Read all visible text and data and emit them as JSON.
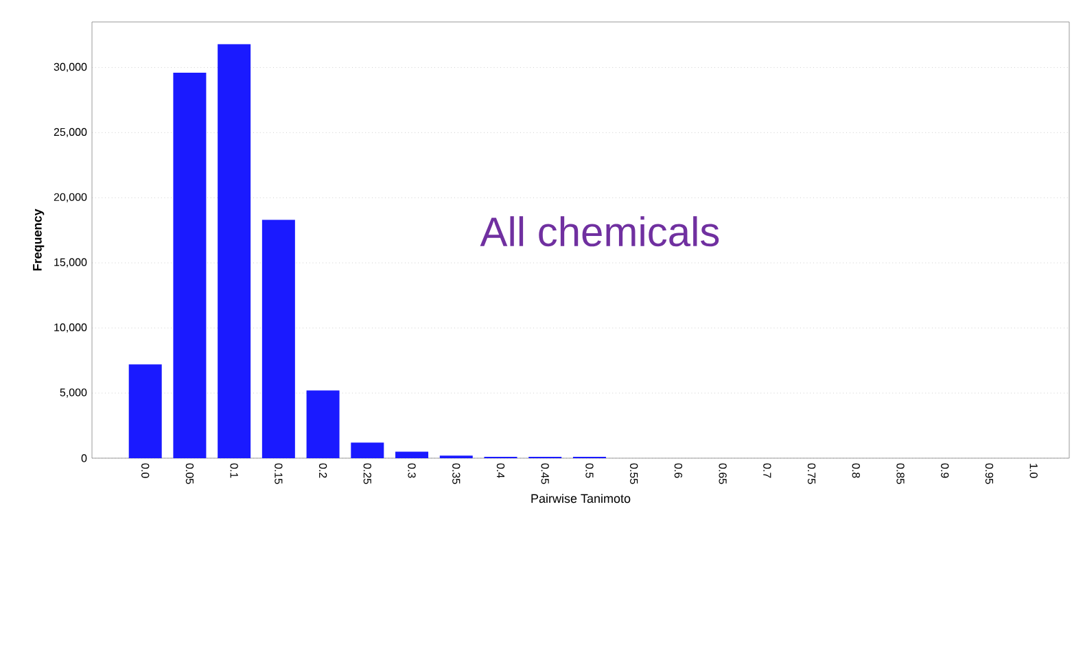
{
  "chart_data": {
    "type": "bar",
    "categories": [
      "0.0",
      "0.05",
      "0.1",
      "0.15",
      "0.2",
      "0.25",
      "0.3",
      "0.35",
      "0.4",
      "0.45",
      "0.5",
      "0.55",
      "0.6",
      "0.65",
      "0.7",
      "0.75",
      "0.8",
      "0.85",
      "0.9",
      "0.95",
      "1.0"
    ],
    "values": [
      7200,
      29600,
      31800,
      18300,
      5200,
      1200,
      500,
      200,
      100,
      100,
      100,
      0,
      0,
      0,
      0,
      0,
      0,
      0,
      0,
      0,
      0
    ],
    "color": "#1a1aff",
    "xlabel": "Pairwise Tanimoto",
    "ylabel": "Frequency",
    "ylim": [
      0,
      33500
    ],
    "yticks": [
      {
        "value": 0,
        "label": "0"
      },
      {
        "value": 5000,
        "label": "5,000"
      },
      {
        "value": 10000,
        "label": "10,000"
      },
      {
        "value": 15000,
        "label": "15,000"
      },
      {
        "value": 20000,
        "label": "20,000"
      },
      {
        "value": 25000,
        "label": "25,000"
      },
      {
        "value": 30000,
        "label": "30,000"
      }
    ],
    "grid": "y",
    "annotations": [
      "All chemicals"
    ]
  }
}
